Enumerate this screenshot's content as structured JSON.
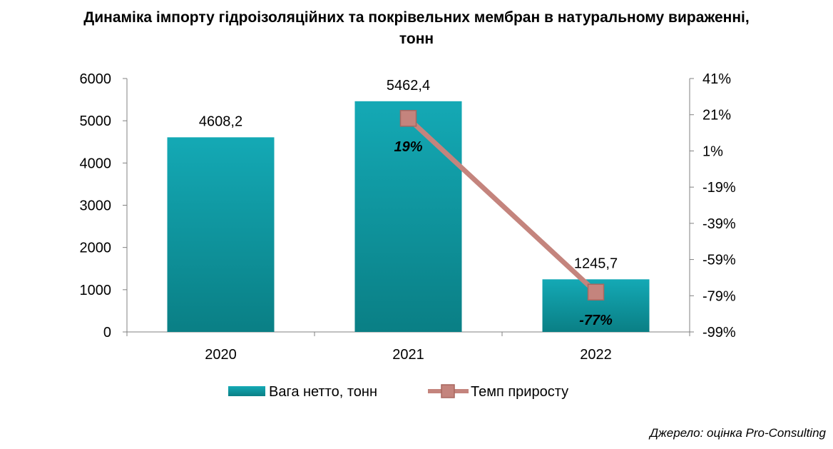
{
  "chart_data": {
    "type": "bar",
    "title_line1": "Динаміка імпорту гідроізоляційних та покрівельних мембран в натуральному вираженні,",
    "title_line2": "тонн",
    "categories": [
      "2020",
      "2021",
      "2022"
    ],
    "series": [
      {
        "name": "Вага нетто, тонн",
        "type": "bar",
        "axis": "left",
        "values": [
          4608.2,
          5462.4,
          1245.7
        ],
        "labels": [
          "4608,2",
          "5462,4",
          "1245,7"
        ],
        "color": "#119fad"
      },
      {
        "name": "Темп приросту",
        "type": "line",
        "axis": "right",
        "values": [
          null,
          19,
          -77
        ],
        "labels": [
          "",
          "19%",
          "-77%"
        ],
        "color": "#c4847d",
        "marker": "square"
      }
    ],
    "y_left": {
      "min": 0,
      "max": 6000,
      "ticks": [
        "0",
        "1000",
        "2000",
        "3000",
        "4000",
        "5000",
        "6000"
      ]
    },
    "y_right": {
      "min": -99,
      "max": 41,
      "ticks": [
        "-99%",
        "-79%",
        "-59%",
        "-39%",
        "-19%",
        "1%",
        "21%",
        "41%"
      ]
    },
    "grid": false,
    "legend_position": "bottom",
    "source": "Джерело: оцінка Pro-Consulting"
  }
}
